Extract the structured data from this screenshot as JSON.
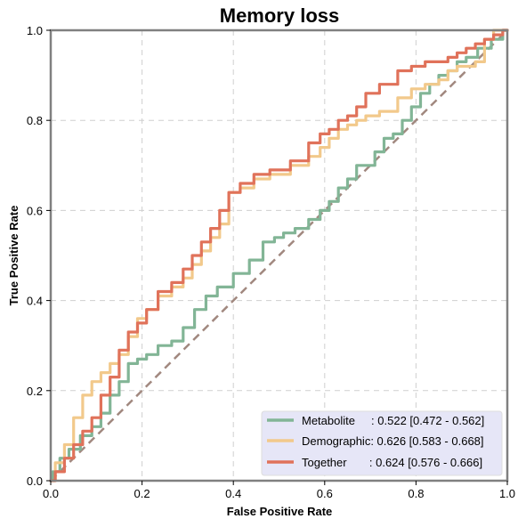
{
  "chart_data": {
    "type": "line",
    "title": "Memory loss",
    "xlabel": "False Positive Rate",
    "ylabel": "True Positive Rate",
    "xlim": [
      0,
      1
    ],
    "ylim": [
      0,
      1
    ],
    "xticks": [
      0.0,
      0.2,
      0.4,
      0.6,
      0.8,
      1.0
    ],
    "yticks": [
      0.0,
      0.2,
      0.4,
      0.6,
      0.8,
      1.0
    ],
    "xtick_labels": [
      "0.0",
      "0.2",
      "0.4",
      "0.6",
      "0.8",
      "1.0"
    ],
    "ytick_labels": [
      "0.0",
      "0.2",
      "0.4",
      "0.6",
      "0.8",
      "1.0"
    ],
    "grid": true,
    "legend_position": "lower-right",
    "diagonal": {
      "x": [
        0,
        1
      ],
      "y": [
        0,
        1
      ],
      "color": "#a1887f",
      "style": "dashed"
    },
    "series": [
      {
        "name": "Metabolite",
        "legend_label": "Metabolite     : 0.522 [0.472 - 0.562]",
        "color": "#82b596",
        "x": [
          0.0,
          0.01,
          0.03,
          0.05,
          0.08,
          0.1,
          0.12,
          0.14,
          0.16,
          0.18,
          0.2,
          0.22,
          0.25,
          0.28,
          0.3,
          0.33,
          0.35,
          0.38,
          0.42,
          0.45,
          0.48,
          0.5,
          0.52,
          0.55,
          0.58,
          0.6,
          0.62,
          0.64,
          0.66,
          0.68,
          0.7,
          0.72,
          0.74,
          0.76,
          0.78,
          0.8,
          0.82,
          0.84,
          0.86,
          0.88,
          0.9,
          0.92,
          0.95,
          0.98,
          1.0
        ],
        "y": [
          0.0,
          0.02,
          0.05,
          0.07,
          0.1,
          0.12,
          0.15,
          0.19,
          0.22,
          0.26,
          0.27,
          0.28,
          0.3,
          0.31,
          0.34,
          0.38,
          0.41,
          0.43,
          0.46,
          0.49,
          0.53,
          0.54,
          0.55,
          0.56,
          0.58,
          0.6,
          0.62,
          0.65,
          0.67,
          0.7,
          0.7,
          0.73,
          0.76,
          0.77,
          0.8,
          0.83,
          0.86,
          0.88,
          0.9,
          0.91,
          0.93,
          0.94,
          0.96,
          0.98,
          1.0
        ]
      },
      {
        "name": "Demographic",
        "legend_label": "Demographic: 0.626 [0.583 - 0.668]",
        "color": "#f2c98b",
        "x": [
          0.0,
          0.02,
          0.04,
          0.06,
          0.08,
          0.1,
          0.12,
          0.14,
          0.16,
          0.18,
          0.2,
          0.22,
          0.25,
          0.28,
          0.3,
          0.32,
          0.34,
          0.36,
          0.38,
          0.4,
          0.43,
          0.46,
          0.5,
          0.55,
          0.58,
          0.6,
          0.62,
          0.64,
          0.66,
          0.68,
          0.7,
          0.74,
          0.78,
          0.8,
          0.84,
          0.86,
          0.88,
          0.9,
          0.92,
          0.94,
          0.96,
          0.98,
          1.0
        ],
        "y": [
          0.0,
          0.04,
          0.08,
          0.14,
          0.19,
          0.22,
          0.24,
          0.26,
          0.28,
          0.32,
          0.36,
          0.38,
          0.41,
          0.43,
          0.45,
          0.48,
          0.51,
          0.54,
          0.57,
          0.64,
          0.65,
          0.67,
          0.68,
          0.7,
          0.72,
          0.74,
          0.76,
          0.78,
          0.79,
          0.8,
          0.81,
          0.82,
          0.85,
          0.87,
          0.88,
          0.89,
          0.91,
          0.92,
          0.92,
          0.93,
          0.98,
          1.0,
          1.0
        ]
      },
      {
        "name": "Together",
        "legend_label": "Together       : 0.624 [0.576 - 0.666]",
        "color": "#e0725a",
        "x": [
          0.0,
          0.02,
          0.04,
          0.06,
          0.08,
          0.1,
          0.12,
          0.14,
          0.16,
          0.18,
          0.2,
          0.22,
          0.25,
          0.28,
          0.3,
          0.32,
          0.34,
          0.36,
          0.38,
          0.4,
          0.43,
          0.46,
          0.5,
          0.55,
          0.58,
          0.6,
          0.62,
          0.64,
          0.66,
          0.68,
          0.7,
          0.74,
          0.78,
          0.8,
          0.84,
          0.86,
          0.88,
          0.9,
          0.92,
          0.94,
          0.96,
          0.98,
          1.0
        ],
        "y": [
          0.0,
          0.02,
          0.05,
          0.08,
          0.11,
          0.14,
          0.19,
          0.23,
          0.29,
          0.33,
          0.35,
          0.38,
          0.42,
          0.44,
          0.47,
          0.5,
          0.53,
          0.56,
          0.6,
          0.64,
          0.66,
          0.68,
          0.69,
          0.71,
          0.75,
          0.77,
          0.78,
          0.8,
          0.81,
          0.83,
          0.86,
          0.88,
          0.91,
          0.92,
          0.93,
          0.93,
          0.94,
          0.95,
          0.96,
          0.97,
          0.98,
          0.99,
          1.0
        ]
      }
    ]
  }
}
